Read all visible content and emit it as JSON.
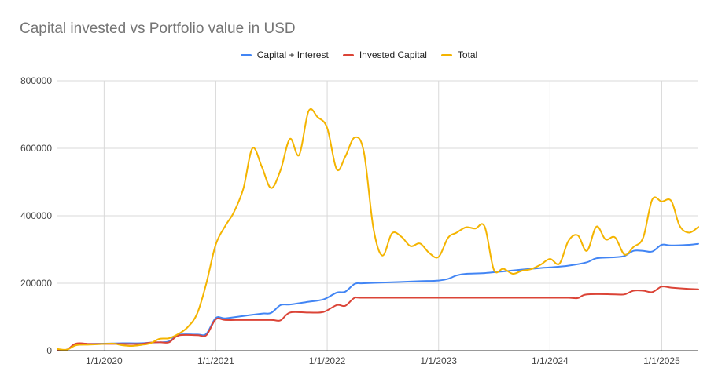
{
  "chart_data": {
    "type": "line",
    "title": "Capital invested vs Portfolio value in USD",
    "xlabel": "",
    "ylabel": "",
    "x_range": [
      "2019-08-01",
      "2025-05-01"
    ],
    "ylim": [
      0,
      800000
    ],
    "y_ticks": [
      0,
      200000,
      400000,
      600000,
      800000
    ],
    "y_tick_labels": [
      "0",
      "200000",
      "400000",
      "600000",
      "800000"
    ],
    "x_ticks": [
      "2020-01-01",
      "2021-01-01",
      "2022-01-01",
      "2023-01-01",
      "2024-01-01",
      "2025-01-01"
    ],
    "x_tick_labels": [
      "1/1/2020",
      "1/1/2021",
      "1/1/2022",
      "1/1/2023",
      "1/1/2024",
      "1/1/2025"
    ],
    "grid": true,
    "legend_position": "top",
    "series": [
      {
        "name": "Capital + Interest",
        "color": "#4285F4",
        "points": [
          [
            "2019-08-01",
            2000
          ],
          [
            "2019-09-01",
            3000
          ],
          [
            "2019-10-01",
            20000
          ],
          [
            "2019-11-15",
            20000
          ],
          [
            "2020-01-01",
            21000
          ],
          [
            "2020-03-01",
            22000
          ],
          [
            "2020-05-01",
            22000
          ],
          [
            "2020-06-01",
            24000
          ],
          [
            "2020-07-01",
            25000
          ],
          [
            "2020-08-01",
            28000
          ],
          [
            "2020-09-01",
            47000
          ],
          [
            "2020-11-01",
            48000
          ],
          [
            "2020-12-01",
            50000
          ],
          [
            "2021-01-01",
            97000
          ],
          [
            "2021-02-01",
            96000
          ],
          [
            "2021-04-01",
            103000
          ],
          [
            "2021-06-01",
            110000
          ],
          [
            "2021-07-01",
            112000
          ],
          [
            "2021-08-01",
            135000
          ],
          [
            "2021-09-01",
            137000
          ],
          [
            "2021-11-01",
            145000
          ],
          [
            "2021-12-20",
            152000
          ],
          [
            "2022-02-01",
            172000
          ],
          [
            "2022-03-01",
            175000
          ],
          [
            "2022-04-01",
            198000
          ],
          [
            "2022-05-01",
            200000
          ],
          [
            "2022-08-01",
            203000
          ],
          [
            "2022-11-01",
            206000
          ],
          [
            "2023-01-01",
            208000
          ],
          [
            "2023-02-01",
            213000
          ],
          [
            "2023-03-01",
            223000
          ],
          [
            "2023-04-01",
            228000
          ],
          [
            "2023-06-01",
            230000
          ],
          [
            "2023-09-01",
            238000
          ],
          [
            "2023-12-01",
            245000
          ],
          [
            "2024-01-01",
            247000
          ],
          [
            "2024-03-01",
            252000
          ],
          [
            "2024-05-01",
            262000
          ],
          [
            "2024-06-01",
            274000
          ],
          [
            "2024-08-01",
            277000
          ],
          [
            "2024-09-01",
            281000
          ],
          [
            "2024-10-01",
            296000
          ],
          [
            "2024-11-01",
            296000
          ],
          [
            "2024-12-01",
            294000
          ],
          [
            "2025-01-01",
            314000
          ],
          [
            "2025-02-01",
            312000
          ],
          [
            "2025-04-01",
            314000
          ],
          [
            "2025-05-01",
            317000
          ]
        ]
      },
      {
        "name": "Invested Capital",
        "color": "#DB4437",
        "points": [
          [
            "2019-08-01",
            3000
          ],
          [
            "2019-09-01",
            3000
          ],
          [
            "2019-10-01",
            21000
          ],
          [
            "2019-11-15",
            20000
          ],
          [
            "2020-01-01",
            20000
          ],
          [
            "2020-03-01",
            20000
          ],
          [
            "2020-05-01",
            20000
          ],
          [
            "2020-06-01",
            24000
          ],
          [
            "2020-07-01",
            25000
          ],
          [
            "2020-08-01",
            25000
          ],
          [
            "2020-09-01",
            45000
          ],
          [
            "2020-11-01",
            46000
          ],
          [
            "2020-12-01",
            46000
          ],
          [
            "2021-01-01",
            93000
          ],
          [
            "2021-02-01",
            91000
          ],
          [
            "2021-04-01",
            91000
          ],
          [
            "2021-07-01",
            91000
          ],
          [
            "2021-08-01",
            90000
          ],
          [
            "2021-09-01",
            113000
          ],
          [
            "2021-11-01",
            113000
          ],
          [
            "2021-12-20",
            115000
          ],
          [
            "2022-02-01",
            135000
          ],
          [
            "2022-03-01",
            133000
          ],
          [
            "2022-04-01",
            157000
          ],
          [
            "2022-05-01",
            157000
          ],
          [
            "2023-01-01",
            157000
          ],
          [
            "2024-01-01",
            157000
          ],
          [
            "2024-03-01",
            157000
          ],
          [
            "2024-04-01",
            156000
          ],
          [
            "2024-05-01",
            167000
          ],
          [
            "2024-08-01",
            167000
          ],
          [
            "2024-09-01",
            167000
          ],
          [
            "2024-10-01",
            178000
          ],
          [
            "2024-11-01",
            178000
          ],
          [
            "2024-12-01",
            174000
          ],
          [
            "2025-01-01",
            190000
          ],
          [
            "2025-02-01",
            187000
          ],
          [
            "2025-04-01",
            183000
          ],
          [
            "2025-05-01",
            182000
          ]
        ]
      },
      {
        "name": "Total",
        "color": "#F4B400",
        "points": [
          [
            "2019-08-01",
            5000
          ],
          [
            "2019-09-01",
            3000
          ],
          [
            "2019-10-01",
            16000
          ],
          [
            "2019-11-15",
            18000
          ],
          [
            "2020-01-01",
            20000
          ],
          [
            "2020-02-01",
            21000
          ],
          [
            "2020-03-01",
            16000
          ],
          [
            "2020-04-01",
            14000
          ],
          [
            "2020-05-01",
            17000
          ],
          [
            "2020-06-01",
            22000
          ],
          [
            "2020-07-01",
            35000
          ],
          [
            "2020-08-01",
            37000
          ],
          [
            "2020-09-01",
            50000
          ],
          [
            "2020-10-01",
            70000
          ],
          [
            "2020-11-01",
            110000
          ],
          [
            "2020-12-01",
            200000
          ],
          [
            "2021-01-01",
            315000
          ],
          [
            "2021-02-01",
            370000
          ],
          [
            "2021-03-01",
            410000
          ],
          [
            "2021-04-01",
            480000
          ],
          [
            "2021-05-01",
            600000
          ],
          [
            "2021-06-01",
            545000
          ],
          [
            "2021-07-01",
            482000
          ],
          [
            "2021-08-01",
            535000
          ],
          [
            "2021-09-01",
            628000
          ],
          [
            "2021-10-01",
            580000
          ],
          [
            "2021-11-01",
            710000
          ],
          [
            "2021-12-01",
            692000
          ],
          [
            "2022-01-01",
            660000
          ],
          [
            "2022-02-01",
            538000
          ],
          [
            "2022-03-01",
            575000
          ],
          [
            "2022-04-01",
            632000
          ],
          [
            "2022-05-01",
            590000
          ],
          [
            "2022-06-01",
            365000
          ],
          [
            "2022-07-01",
            282000
          ],
          [
            "2022-08-01",
            348000
          ],
          [
            "2022-09-01",
            338000
          ],
          [
            "2022-10-01",
            310000
          ],
          [
            "2022-11-01",
            318000
          ],
          [
            "2022-12-01",
            290000
          ],
          [
            "2023-01-01",
            278000
          ],
          [
            "2023-02-01",
            335000
          ],
          [
            "2023-03-01",
            350000
          ],
          [
            "2023-04-01",
            366000
          ],
          [
            "2023-05-01",
            362000
          ],
          [
            "2023-06-01",
            368000
          ],
          [
            "2023-07-01",
            240000
          ],
          [
            "2023-08-01",
            243000
          ],
          [
            "2023-09-01",
            228000
          ],
          [
            "2023-10-01",
            237000
          ],
          [
            "2023-11-01",
            242000
          ],
          [
            "2023-12-01",
            255000
          ],
          [
            "2024-01-01",
            272000
          ],
          [
            "2024-02-01",
            258000
          ],
          [
            "2024-03-01",
            325000
          ],
          [
            "2024-04-01",
            342000
          ],
          [
            "2024-05-01",
            296000
          ],
          [
            "2024-06-01",
            368000
          ],
          [
            "2024-07-01",
            330000
          ],
          [
            "2024-08-01",
            336000
          ],
          [
            "2024-09-01",
            285000
          ],
          [
            "2024-10-01",
            308000
          ],
          [
            "2024-11-01",
            335000
          ],
          [
            "2024-12-01",
            448000
          ],
          [
            "2025-01-01",
            442000
          ],
          [
            "2025-02-01",
            444000
          ],
          [
            "2025-03-01",
            370000
          ],
          [
            "2025-04-01",
            350000
          ],
          [
            "2025-05-01",
            367000
          ]
        ]
      }
    ]
  }
}
